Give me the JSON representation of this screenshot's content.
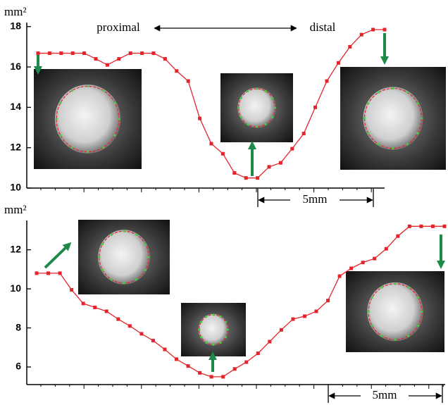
{
  "chart_data": [
    {
      "type": "line",
      "y_label": "mm²",
      "color": "#e3242b",
      "values": [
        16.68,
        16.68,
        16.68,
        16.68,
        16.68,
        16.4,
        16.1,
        16.4,
        16.68,
        16.68,
        16.68,
        16.4,
        15.8,
        15.3,
        13.45,
        12.2,
        11.7,
        10.75,
        10.5,
        10.5,
        11.05,
        11.25,
        11.95,
        12.7,
        14.0,
        15.3,
        16.2,
        17.0,
        17.6,
        17.85,
        17.85
      ],
      "ylim": [
        10,
        18.2
      ],
      "yticks": [
        10,
        12,
        14,
        16,
        18
      ],
      "annotations": [
        "proximal",
        "distal"
      ],
      "scale_label": "5mm"
    },
    {
      "type": "line",
      "y_label": "mm²",
      "color": "#e3242b",
      "values": [
        10.8,
        10.8,
        10.8,
        9.95,
        9.25,
        9.05,
        8.85,
        8.45,
        8.1,
        7.7,
        7.35,
        6.9,
        6.4,
        6.05,
        5.7,
        5.5,
        5.5,
        5.9,
        6.25,
        6.7,
        7.3,
        7.9,
        8.45,
        8.6,
        8.85,
        9.4,
        10.65,
        11.05,
        11.35,
        11.55,
        12.05,
        12.7,
        13.2,
        13.2,
        13.2,
        13.2
      ],
      "ylim": [
        5.1,
        13.5
      ],
      "yticks": [
        6,
        8,
        10,
        12
      ],
      "scale_label": "5mm"
    }
  ]
}
